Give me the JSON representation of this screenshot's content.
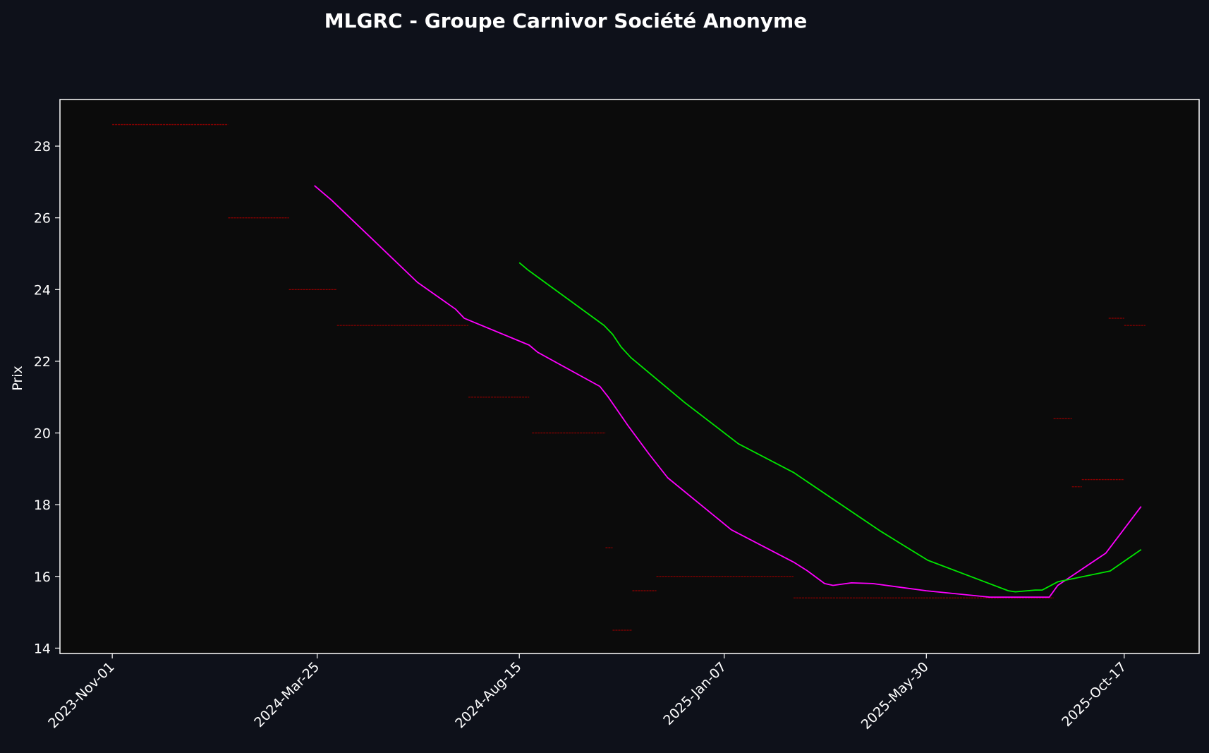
{
  "colors": {
    "background": "#0e111a",
    "plot_background": "#0b0b0b",
    "axis": "#ffffff",
    "text": "#ffffff",
    "price_segments": "#8b0000",
    "ma_fast": "#ff00ff",
    "ma_slow": "#00e600"
  },
  "chart_data": {
    "type": "line",
    "title": "MLGRC - Groupe Carnivor Société Anonyme",
    "xlabel": "",
    "ylabel": "Prix",
    "x_ticks": [
      "2023-Nov-01",
      "2024-Mar-25",
      "2024-Aug-15",
      "2025-Jan-07",
      "2025-May-30",
      "2025-Oct-17"
    ],
    "xlim": [
      "2023-Sep-25",
      "2025-Dec-09"
    ],
    "y_ticks": [
      14,
      16,
      18,
      20,
      22,
      24,
      26,
      28
    ],
    "ylim": [
      13.85,
      29.3
    ],
    "grid": false,
    "legend": "none",
    "price_segments": [
      {
        "start": "2023-Nov-01",
        "end": "2024-Jan-22",
        "value": 28.6
      },
      {
        "start": "2024-Jan-22",
        "end": "2024-Mar-05",
        "value": 26.0
      },
      {
        "start": "2024-Mar-05",
        "end": "2024-Apr-08",
        "value": 24.0
      },
      {
        "start": "2024-Apr-08",
        "end": "2024-Jul-10",
        "value": 23.0
      },
      {
        "start": "2024-Jul-10",
        "end": "2024-Aug-22",
        "value": 21.0
      },
      {
        "start": "2024-Aug-24",
        "end": "2024-Oct-15",
        "value": 20.0
      },
      {
        "start": "2024-Oct-15",
        "end": "2024-Oct-20",
        "value": 16.8
      },
      {
        "start": "2024-Oct-20",
        "end": "2024-Nov-03",
        "value": 14.5
      },
      {
        "start": "2024-Nov-03",
        "end": "2024-Nov-20",
        "value": 15.6
      },
      {
        "start": "2024-Nov-20",
        "end": "2025-Feb-25",
        "value": 16.0
      },
      {
        "start": "2025-Feb-25",
        "end": "2025-Aug-28",
        "value": 15.4
      },
      {
        "start": "2025-Aug-28",
        "end": "2025-Sep-10",
        "value": 20.4
      },
      {
        "start": "2025-Sep-10",
        "end": "2025-Sep-17",
        "value": 18.5
      },
      {
        "start": "2025-Sep-17",
        "end": "2025-Oct-17",
        "value": 18.7
      },
      {
        "start": "2025-Oct-06",
        "end": "2025-Oct-17",
        "value": 23.2
      },
      {
        "start": "2025-Oct-17",
        "end": "2025-Nov-01",
        "value": 23.0
      }
    ],
    "series": [
      {
        "color": "#ff00ff",
        "points": [
          [
            "2024-Mar-23",
            26.9
          ],
          [
            "2024-Apr-04",
            26.5
          ],
          [
            "2024-Jun-04",
            24.2
          ],
          [
            "2024-Jul-01",
            23.45
          ],
          [
            "2024-Jul-07",
            23.2
          ],
          [
            "2024-Aug-22",
            22.45
          ],
          [
            "2024-Aug-28",
            22.25
          ],
          [
            "2024-Oct-11",
            21.3
          ],
          [
            "2024-Oct-17",
            21.0
          ],
          [
            "2024-Oct-31",
            20.2
          ],
          [
            "2024-Nov-15",
            19.4
          ],
          [
            "2024-Nov-28",
            18.75
          ],
          [
            "2025-Jan-12",
            17.3
          ],
          [
            "2025-Feb-25",
            16.4
          ],
          [
            "2025-Mar-07",
            16.15
          ],
          [
            "2025-Mar-19",
            15.8
          ],
          [
            "2025-Mar-25",
            15.75
          ],
          [
            "2025-Apr-07",
            15.82
          ],
          [
            "2025-Apr-22",
            15.8
          ],
          [
            "2025-May-30",
            15.6
          ],
          [
            "2025-Jul-14",
            15.42
          ],
          [
            "2025-Aug-25",
            15.42
          ],
          [
            "2025-Aug-31",
            15.75
          ],
          [
            "2025-Oct-04",
            16.65
          ],
          [
            "2025-Oct-29",
            17.95
          ]
        ]
      },
      {
        "color": "#00e600",
        "points": [
          [
            "2024-Aug-15",
            24.75
          ],
          [
            "2024-Aug-21",
            24.55
          ],
          [
            "2024-Oct-14",
            23.0
          ],
          [
            "2024-Oct-20",
            22.75
          ],
          [
            "2024-Oct-26",
            22.4
          ],
          [
            "2024-Nov-02",
            22.1
          ],
          [
            "2024-Dec-10",
            20.85
          ],
          [
            "2025-Jan-17",
            19.7
          ],
          [
            "2025-Feb-25",
            18.9
          ],
          [
            "2025-Apr-28",
            17.25
          ],
          [
            "2025-May-31",
            16.45
          ],
          [
            "2025-Jul-27",
            15.6
          ],
          [
            "2025-Aug-01",
            15.57
          ],
          [
            "2025-Aug-15",
            15.62
          ],
          [
            "2025-Aug-20",
            15.62
          ],
          [
            "2025-Aug-31",
            15.85
          ],
          [
            "2025-Oct-07",
            16.15
          ],
          [
            "2025-Oct-29",
            16.75
          ]
        ]
      }
    ]
  }
}
